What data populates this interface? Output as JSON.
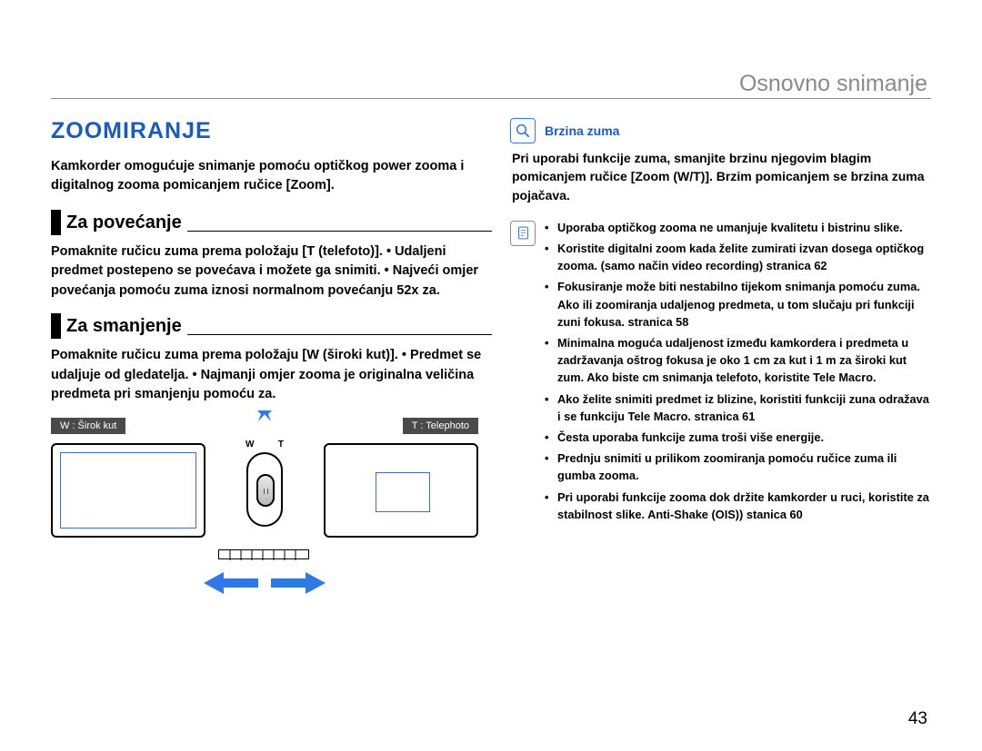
{
  "header": {
    "title": "Osnovno snimanje"
  },
  "left": {
    "main_title": "ZOOMIRANJE",
    "intro": "Kamkorder omogućuje snimanje pomoću optičkog power zooma i digitalnog zooma pomicanjem ručice [Zoom].",
    "sub_zoomin": {
      "label": "Za povećanje",
      "para": "Pomaknite ručicu zuma prema položaju [T (telefoto)].\n• Udaljeni predmet postepeno se povećava i možete ga snimiti.\n• Najveći omjer povećanja pomoću zuma iznosi normalnom povećanju 52x za."
    },
    "sub_zoomout": {
      "label": "Za smanjenje",
      "para": "Pomaknite ručicu zuma prema položaju [W (široki kut)].\n• Predmet se udaljuje od gledatelja.\n• Najmanji omjer zooma je originalna veličina predmeta pri smanjenju pomoću za."
    }
  },
  "diagram": {
    "label_w": "W : Širok kut",
    "label_t": "T : Telephoto",
    "zoom_w": "W",
    "zoom_t": "T",
    "colors": {
      "arrow": "#2f79e6",
      "frame": "#3d6bd1"
    }
  },
  "right": {
    "speed_title": "Brzina zuma",
    "speed_body": "Pri uporabi funkcije zuma, smanjite brzinu njegovim blagim pomicanjem ručice [Zoom (W/T)]. Brzim pomicanjem se brzina zuma pojačava.",
    "notes": [
      "Uporaba optičkog zooma ne umanjuje kvalitetu i bistrinu slike.",
      "Koristite digitalni zoom kada želite zumirati izvan dosega optičkog zooma. (samo način video recording)  stranica 62",
      "Fokusiranje može biti nestabilno tijekom snimanja pomoću zuma. Ako ili zoomiranja udaljenog predmeta, u tom slučaju pri funkciji zuni fokusa.  stranica 58",
      "Minimalna moguća udaljenost između kamkordera i predmeta u zadržavanja oštrog fokusa je oko 1 cm za kut i 1 m za široki kut zum. Ako biste cm snimanja telefoto, koristite Tele Macro.",
      "Ako želite snimiti predmet iz blizine, koristiti funkciji zuna odražava i se funkciju Tele Macro.  stranica 61",
      "Česta uporaba funkcije zuma troši više energije.",
      "Prednju snimiti u prilikom zoomiranja pomoću ručice zuma ili gumba zooma.",
      "Pri uporabi funkcije zooma dok držite kamkorder u ruci, koristite za stabilnost slike. Anti-Shake (OIS))  stanica 60"
    ]
  },
  "page_number": "43"
}
